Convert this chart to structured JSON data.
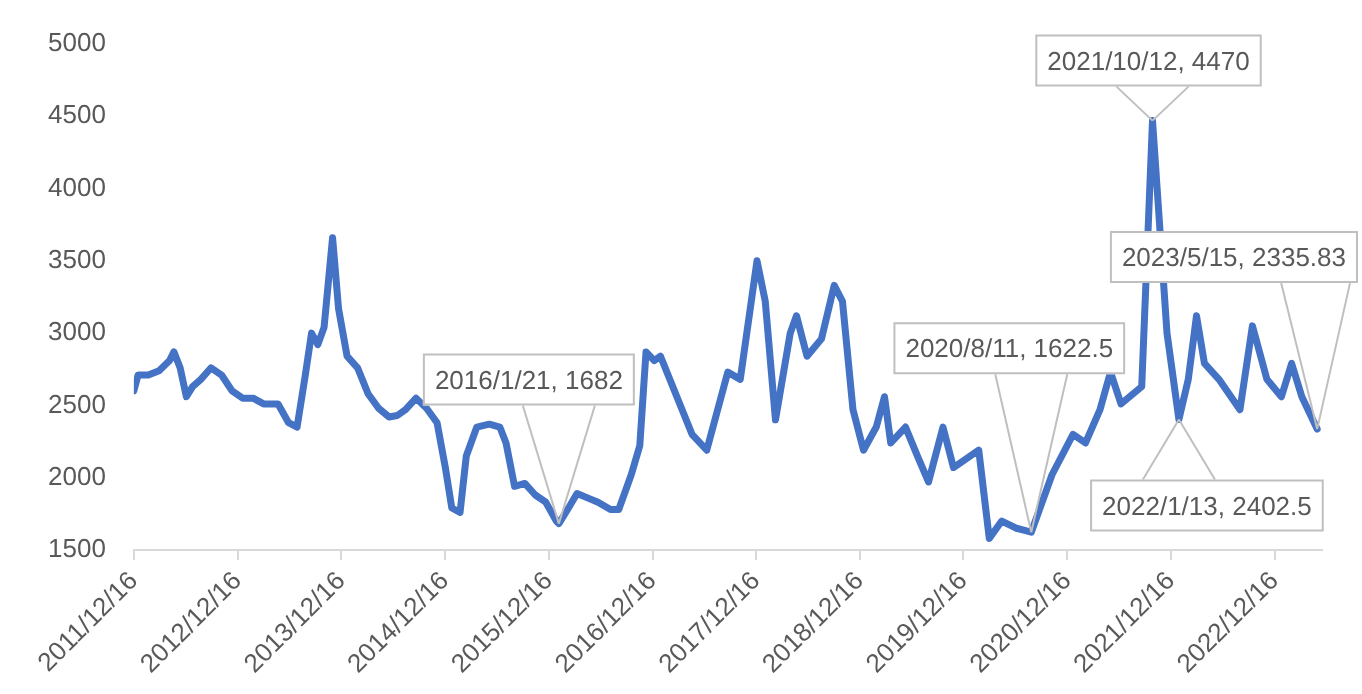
{
  "chart_data": {
    "type": "line",
    "grid": false,
    "legend": false,
    "marker": "none",
    "line_style": "solid",
    "xlim": [
      "2011-12-16",
      "2023-06-01"
    ],
    "ylim": [
      1500,
      5000
    ],
    "yticks": [
      1500,
      2000,
      2500,
      3000,
      3500,
      4000,
      4500,
      5000
    ],
    "xticks": [
      {
        "value": "2011-12-16",
        "label": "2011/12/16"
      },
      {
        "value": "2012-12-16",
        "label": "2012/12/16"
      },
      {
        "value": "2013-12-16",
        "label": "2013/12/16"
      },
      {
        "value": "2014-12-16",
        "label": "2014/12/16"
      },
      {
        "value": "2015-12-16",
        "label": "2015/12/16"
      },
      {
        "value": "2016-12-16",
        "label": "2016/12/16"
      },
      {
        "value": "2017-12-16",
        "label": "2017/12/16"
      },
      {
        "value": "2018-12-16",
        "label": "2018/12/16"
      },
      {
        "value": "2019-12-16",
        "label": "2019/12/16"
      },
      {
        "value": "2020-12-16",
        "label": "2020/12/16"
      },
      {
        "value": "2021-12-16",
        "label": "2021/12/16"
      },
      {
        "value": "2022-12-16",
        "label": "2022/12/16"
      }
    ],
    "series": [
      {
        "color": "#4472c4",
        "x": [
          "2011-12-16",
          "2011-12-31",
          "2012-02-05",
          "2012-03-14",
          "2012-04-20",
          "2012-05-05",
          "2012-05-27",
          "2012-06-18",
          "2012-07-10",
          "2012-08-08",
          "2012-09-13",
          "2012-10-20",
          "2012-11-26",
          "2013-01-02",
          "2013-02-08",
          "2013-03-17",
          "2013-05-07",
          "2013-06-13",
          "2013-07-13",
          "2013-08-11",
          "2013-09-02",
          "2013-09-24",
          "2013-10-16",
          "2013-11-15",
          "2013-12-06",
          "2014-01-05",
          "2014-02-11",
          "2014-03-20",
          "2014-04-26",
          "2014-06-02",
          "2014-07-01",
          "2014-07-30",
          "2014-09-05",
          "2014-10-12",
          "2014-11-18",
          "2014-12-18",
          "2015-01-09",
          "2015-02-07",
          "2015-03-01",
          "2015-04-07",
          "2015-05-21",
          "2015-06-27",
          "2015-07-19",
          "2015-08-18",
          "2015-09-23",
          "2015-10-30",
          "2015-12-06",
          "2016-01-12",
          "2016-01-21",
          "2016-02-24",
          "2016-03-25",
          "2016-05-01",
          "2016-06-07",
          "2016-07-21",
          "2016-08-19",
          "2016-10-02",
          "2016-11-01",
          "2016-11-23",
          "2016-12-22",
          "2017-01-13",
          "2017-05-04",
          "2017-06-25",
          "2017-09-07",
          "2017-10-21",
          "2017-12-19",
          "2018-01-17",
          "2018-02-22",
          "2018-04-15",
          "2018-05-07",
          "2018-06-13",
          "2018-08-03",
          "2018-09-17",
          "2018-10-16",
          "2018-11-22",
          "2018-12-29",
          "2019-02-12",
          "2019-03-13",
          "2019-04-04",
          "2019-05-26",
          "2019-07-09",
          "2019-08-15",
          "2019-10-05",
          "2019-11-11",
          "2020-01-02",
          "2020-02-08",
          "2020-03-16",
          "2020-04-29",
          "2020-06-19",
          "2020-08-11",
          "2020-10-23",
          "2021-01-05",
          "2021-02-18",
          "2021-04-10",
          "2021-05-17",
          "2021-06-23",
          "2021-09-04",
          "2021-10-12",
          "2021-12-02",
          "2022-01-13",
          "2022-02-15",
          "2022-03-16",
          "2022-04-13",
          "2022-06-03",
          "2022-08-16",
          "2022-09-29",
          "2022-11-19",
          "2023-01-09",
          "2023-02-14",
          "2023-03-22",
          "2023-05-15"
        ],
        "values": [
          2600,
          2710,
          2710,
          2740,
          2810,
          2870,
          2760,
          2560,
          2630,
          2680,
          2760,
          2710,
          2600,
          2550,
          2550,
          2510,
          2510,
          2380,
          2350,
          2710,
          3000,
          2920,
          3040,
          3660,
          3170,
          2840,
          2760,
          2580,
          2480,
          2420,
          2430,
          2470,
          2550,
          2480,
          2380,
          2060,
          1790,
          1760,
          2150,
          2350,
          2370,
          2350,
          2240,
          1940,
          1960,
          1880,
          1830,
          1700,
          1682,
          1790,
          1890,
          1860,
          1830,
          1780,
          1780,
          2020,
          2220,
          2870,
          2810,
          2840,
          2300,
          2190,
          2730,
          2680,
          3500,
          3220,
          2400,
          3000,
          3120,
          2840,
          2960,
          3330,
          3220,
          2470,
          2190,
          2350,
          2560,
          2240,
          2350,
          2140,
          1970,
          2350,
          2070,
          2140,
          2190,
          1580,
          1700,
          1650,
          1622.5,
          2020,
          2300,
          2240,
          2470,
          2730,
          2510,
          2630,
          4470,
          3000,
          2402.5,
          2680,
          3120,
          2790,
          2680,
          2470,
          3050,
          2680,
          2560,
          2790,
          2560,
          2335.83
        ]
      }
    ],
    "annotations": [
      {
        "text": "2016/1/21, 1682",
        "x": "2016-01-21",
        "y": 1682
      },
      {
        "text": "2020/8/11, 1622.5",
        "x": "2020-08-11",
        "y": 1622.5
      },
      {
        "text": "2021/10/12, 4470",
        "x": "2021-10-12",
        "y": 4470
      },
      {
        "text": "2023/5/15, 2335.83",
        "x": "2023-05-15",
        "y": 2335.83
      },
      {
        "text": "2022/1/13, 2402.5",
        "x": "2022-01-13",
        "y": 2402.5
      }
    ]
  }
}
